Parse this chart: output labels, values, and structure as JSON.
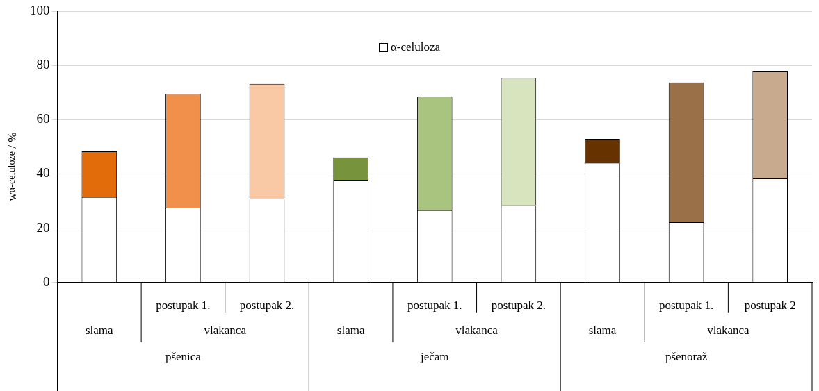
{
  "chart_data": {
    "type": "bar",
    "stacked": true,
    "ylabel": "w$_{α-celuloze}$ / %",
    "categories": [
      null,
      "postupak 1.",
      "postupak 2.",
      null,
      "postupak 1.",
      "postupak 2.",
      null,
      "postupak 1.",
      "postupak 2"
    ],
    "annotations": [
      "slama",
      "vlakanca",
      "slama",
      "vlakanca",
      "slama",
      "vlakanca",
      "pšenica",
      "ječam",
      "pšenoraž"
    ],
    "series": [
      {
        "name": "α-celuloza",
        "color": "#ffffff",
        "values": [
          31.5,
          27.6,
          31.0,
          37.8,
          26.6,
          28.5,
          44.1,
          22.2,
          38.3
        ]
      },
      {
        "colors": [
          "#e36c0a",
          "#f0904a",
          "#f8c9a4",
          "#77933c",
          "#a9c47f",
          "#d7e4bd",
          "#663300",
          "#9a7049",
          "#c8ab8f"
        ],
        "values": [
          16.8,
          41.9,
          42.2,
          8.3,
          41.9,
          46.9,
          8.8,
          51.5,
          39.7
        ]
      }
    ],
    "ylim": [
      0,
      100
    ],
    "yticks": [
      0,
      20,
      40,
      60,
      80,
      100
    ],
    "grid": "y",
    "legend": "top"
  }
}
